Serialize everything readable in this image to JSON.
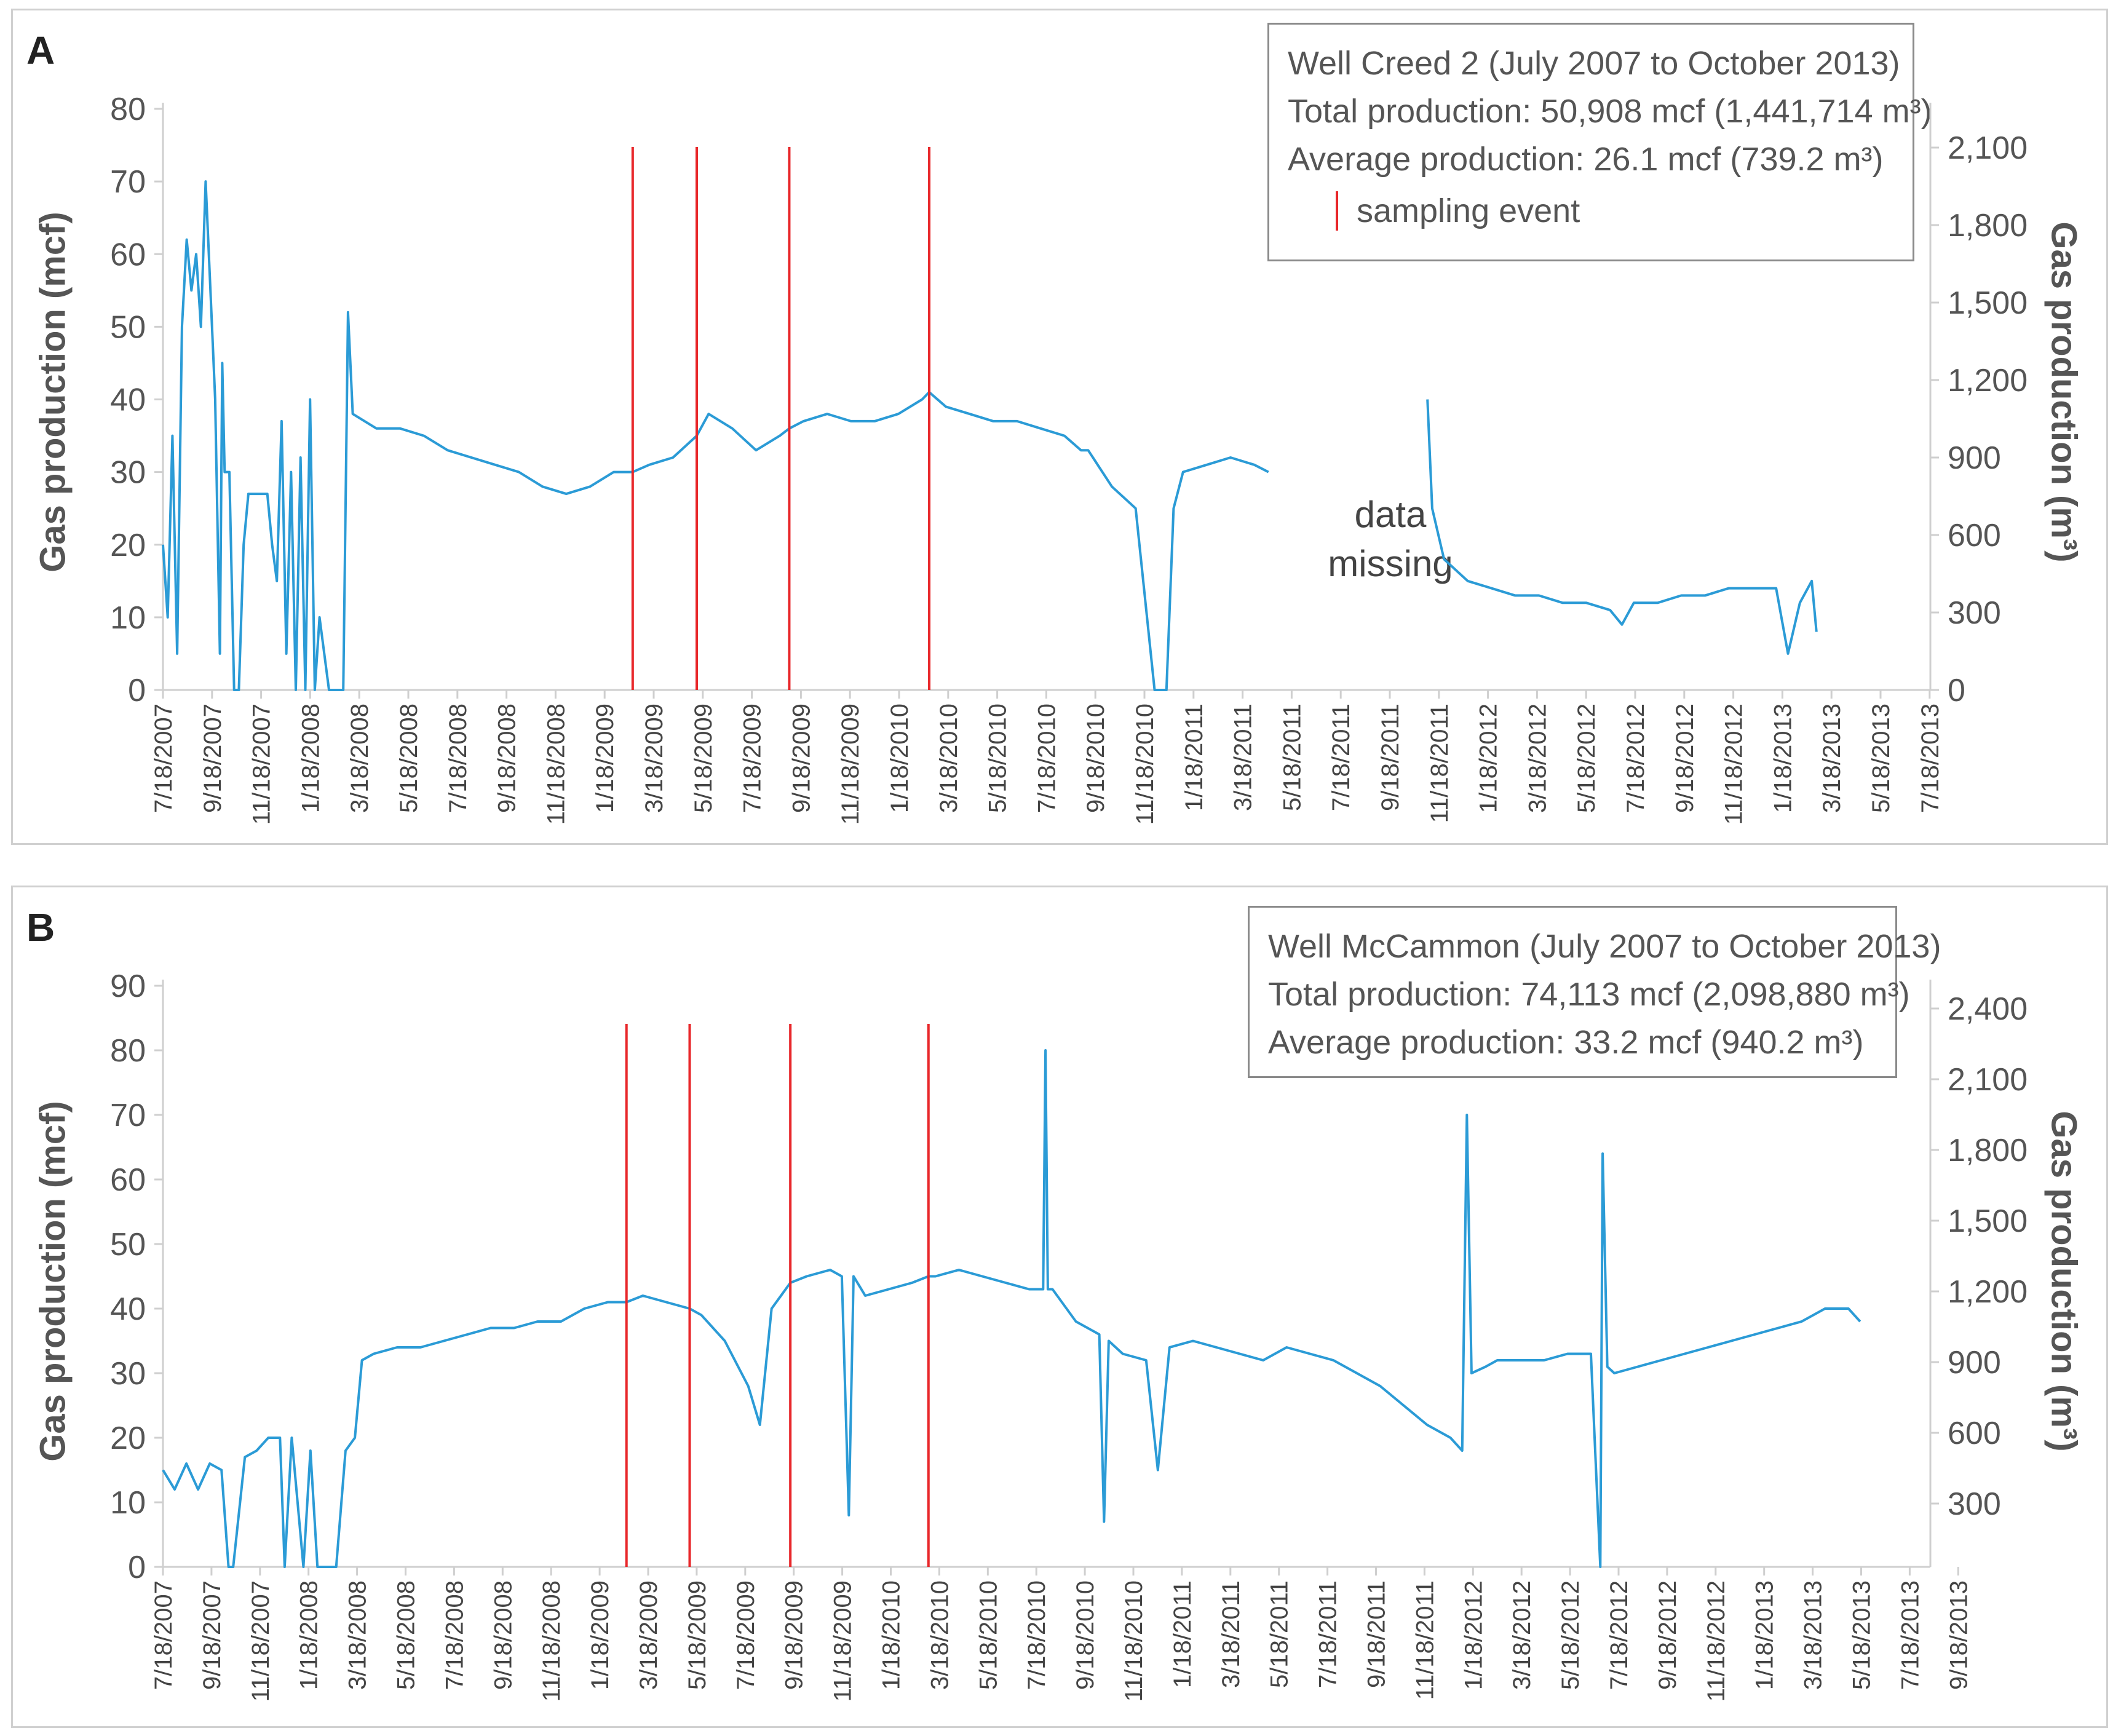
{
  "chart_data": [
    {
      "panel": "A",
      "type": "line",
      "legend_lines": [
        "Well Creed 2 (July 2007 to October 2013)",
        "Total production: 50,908 mcf (1,441,714 m³)",
        "Average production: 26.1 mcf (739.2 m³)"
      ],
      "legend_sample_label": "sampling event",
      "annotation": [
        "data",
        "missing"
      ],
      "ylabel": "Gas production (mcf)",
      "y2label": "Gas production (m³)",
      "ylim": [
        0,
        80
      ],
      "yticks": [
        0,
        10,
        20,
        30,
        40,
        50,
        60,
        70,
        80
      ],
      "y2ticks": [
        "0",
        "300",
        "600",
        "900",
        "1,200",
        "1,500",
        "1,800",
        "2,100"
      ],
      "xticks": [
        "7/18/2007",
        "9/18/2007",
        "11/18/2007",
        "1/18/2008",
        "3/18/2008",
        "5/18/2008",
        "7/18/2008",
        "9/18/2008",
        "11/18/2008",
        "1/18/2009",
        "3/18/2009",
        "5/18/2009",
        "7/18/2009",
        "9/18/2009",
        "11/18/2009",
        "1/18/2010",
        "3/18/2010",
        "5/18/2010",
        "7/18/2010",
        "9/18/2010",
        "11/18/2010",
        "1/18/2011",
        "3/18/2011",
        "5/18/2011",
        "7/18/2011",
        "9/18/2011",
        "11/18/2011",
        "1/18/2012",
        "3/18/2012",
        "5/18/2012",
        "7/18/2012",
        "9/18/2012",
        "11/18/2012",
        "1/18/2013",
        "3/18/2013",
        "5/18/2013",
        "7/18/2013"
      ],
      "sampling_events_month_index": [
        19.8,
        22.5,
        26.4,
        32.3
      ],
      "series": [
        {
          "name": "Gas production",
          "color": "#2b9bd6",
          "points": [
            [
              0,
              20
            ],
            [
              0.2,
              10
            ],
            [
              0.4,
              35
            ],
            [
              0.6,
              5
            ],
            [
              0.8,
              50
            ],
            [
              1,
              62
            ],
            [
              1.2,
              55
            ],
            [
              1.4,
              60
            ],
            [
              1.6,
              50
            ],
            [
              1.8,
              70
            ],
            [
              2,
              55
            ],
            [
              2.2,
              40
            ],
            [
              2.4,
              5
            ],
            [
              2.5,
              45
            ],
            [
              2.6,
              30
            ],
            [
              2.8,
              30
            ],
            [
              3,
              0
            ],
            [
              3.2,
              0
            ],
            [
              3.4,
              20
            ],
            [
              3.6,
              27
            ],
            [
              3.8,
              27
            ],
            [
              4,
              27
            ],
            [
              4.4,
              27
            ],
            [
              4.6,
              20
            ],
            [
              4.8,
              15
            ],
            [
              5,
              37
            ],
            [
              5.2,
              5
            ],
            [
              5.4,
              30
            ],
            [
              5.6,
              0
            ],
            [
              5.8,
              32
            ],
            [
              6,
              0
            ],
            [
              6.2,
              40
            ],
            [
              6.4,
              0
            ],
            [
              6.6,
              10
            ],
            [
              7,
              0
            ],
            [
              7.6,
              0
            ],
            [
              7.8,
              52
            ],
            [
              8,
              38
            ],
            [
              8.5,
              37
            ],
            [
              9,
              36
            ],
            [
              10,
              36
            ],
            [
              11,
              35
            ],
            [
              12,
              33
            ],
            [
              13,
              32
            ],
            [
              14,
              31
            ],
            [
              15,
              30
            ],
            [
              16,
              28
            ],
            [
              17,
              27
            ],
            [
              18,
              28
            ],
            [
              19,
              30
            ],
            [
              19.8,
              30
            ],
            [
              20.5,
              31
            ],
            [
              21.5,
              32
            ],
            [
              22.5,
              35
            ],
            [
              23,
              38
            ],
            [
              24,
              36
            ],
            [
              25,
              33
            ],
            [
              26,
              35
            ],
            [
              26.4,
              36
            ],
            [
              27,
              37
            ],
            [
              28,
              38
            ],
            [
              29,
              37
            ],
            [
              30,
              37
            ],
            [
              31,
              38
            ],
            [
              32,
              40
            ],
            [
              32.3,
              41
            ],
            [
              33,
              39
            ],
            [
              34,
              38
            ],
            [
              35,
              37
            ],
            [
              36,
              37
            ],
            [
              37,
              36
            ],
            [
              38,
              35
            ],
            [
              38.7,
              33
            ],
            [
              39,
              33
            ],
            [
              40,
              28
            ],
            [
              41,
              25
            ],
            [
              41.8,
              0
            ],
            [
              42.3,
              0
            ],
            [
              42.6,
              25
            ],
            [
              43,
              30
            ],
            [
              44,
              31
            ],
            [
              45,
              32
            ],
            [
              46,
              31
            ],
            [
              46.6,
              30
            ],
            [
              46.7,
              null
            ],
            [
              53.2,
              null
            ],
            [
              53.3,
              40
            ],
            [
              53.5,
              25
            ],
            [
              54,
              18
            ],
            [
              55,
              15
            ],
            [
              56,
              14
            ],
            [
              57,
              13
            ],
            [
              58,
              13
            ],
            [
              59,
              12
            ],
            [
              60,
              12
            ],
            [
              61,
              11
            ],
            [
              61.5,
              9
            ],
            [
              62,
              12
            ],
            [
              63,
              12
            ],
            [
              64,
              13
            ],
            [
              65,
              13
            ],
            [
              66,
              14
            ],
            [
              67,
              14
            ],
            [
              68,
              14
            ],
            [
              68.5,
              5
            ],
            [
              69,
              12
            ],
            [
              69.5,
              15
            ],
            [
              69.7,
              8
            ]
          ]
        }
      ]
    },
    {
      "panel": "B",
      "type": "line",
      "legend_lines": [
        "Well McCammon (July 2007 to October 2013)",
        "Total production: 74,113 mcf (2,098,880 m³)",
        "Average production: 33.2 mcf (940.2 m³)"
      ],
      "ylabel": "Gas production (mcf)",
      "y2label": "Gas production (m³)",
      "ylim": [
        0,
        90
      ],
      "yticks": [
        0,
        10,
        20,
        30,
        40,
        50,
        60,
        70,
        80,
        90
      ],
      "y2ticks": [
        "300",
        "600",
        "900",
        "1,200",
        "1,500",
        "1,800",
        "2,100",
        "2,400"
      ],
      "xticks": [
        "7/18/2007",
        "9/18/2007",
        "11/18/2007",
        "1/18/2008",
        "3/18/2008",
        "5/18/2008",
        "7/18/2008",
        "9/18/2008",
        "11/18/2008",
        "1/18/2009",
        "3/18/2009",
        "5/18/2009",
        "7/18/2009",
        "9/18/2009",
        "11/18/2009",
        "1/18/2010",
        "3/18/2010",
        "5/18/2010",
        "7/18/2010",
        "9/18/2010",
        "11/18/2010",
        "1/18/2011",
        "3/18/2011",
        "5/18/2011",
        "7/18/2011",
        "9/18/2011",
        "11/18/2011",
        "1/18/2012",
        "3/18/2012",
        "5/18/2012",
        "7/18/2012",
        "9/18/2012",
        "11/18/2012",
        "1/18/2013",
        "3/18/2013",
        "5/18/2013",
        "7/18/2013",
        "9/18/2013"
      ],
      "sampling_events_month_index": [
        19.8,
        22.5,
        26.8,
        32.7
      ],
      "series": [
        {
          "name": "Gas production",
          "color": "#2b9bd6",
          "points": [
            [
              0,
              15
            ],
            [
              0.5,
              12
            ],
            [
              1,
              16
            ],
            [
              1.5,
              12
            ],
            [
              2,
              16
            ],
            [
              2.5,
              15
            ],
            [
              2.8,
              0
            ],
            [
              3,
              0
            ],
            [
              3.5,
              17
            ],
            [
              4,
              18
            ],
            [
              4.5,
              20
            ],
            [
              5,
              20
            ],
            [
              5.2,
              0
            ],
            [
              5.5,
              20
            ],
            [
              6,
              0
            ],
            [
              6.3,
              18
            ],
            [
              6.6,
              0
            ],
            [
              7,
              0
            ],
            [
              7.4,
              0
            ],
            [
              7.8,
              18
            ],
            [
              8.2,
              20
            ],
            [
              8.5,
              32
            ],
            [
              9,
              33
            ],
            [
              10,
              34
            ],
            [
              11,
              34
            ],
            [
              12,
              35
            ],
            [
              13,
              36
            ],
            [
              14,
              37
            ],
            [
              15,
              37
            ],
            [
              16,
              38
            ],
            [
              17,
              38
            ],
            [
              18,
              40
            ],
            [
              19,
              41
            ],
            [
              19.8,
              41
            ],
            [
              20.5,
              42
            ],
            [
              21.5,
              41
            ],
            [
              22.5,
              40
            ],
            [
              23,
              39
            ],
            [
              24,
              35
            ],
            [
              25,
              28
            ],
            [
              25.5,
              22
            ],
            [
              26,
              40
            ],
            [
              26.8,
              44
            ],
            [
              27.5,
              45
            ],
            [
              28.5,
              46
            ],
            [
              29,
              45
            ],
            [
              29.3,
              8
            ],
            [
              29.5,
              45
            ],
            [
              30,
              42
            ],
            [
              31,
              43
            ],
            [
              32,
              44
            ],
            [
              32.7,
              45
            ],
            [
              33,
              45
            ],
            [
              34,
              46
            ],
            [
              35,
              45
            ],
            [
              36,
              44
            ],
            [
              37,
              43
            ],
            [
              37.6,
              43
            ],
            [
              37.7,
              80
            ],
            [
              37.8,
              43
            ],
            [
              38,
              43
            ],
            [
              39,
              38
            ],
            [
              40,
              36
            ],
            [
              40.2,
              7
            ],
            [
              40.4,
              35
            ],
            [
              41,
              33
            ],
            [
              42,
              32
            ],
            [
              42.5,
              15
            ],
            [
              43,
              34
            ],
            [
              44,
              35
            ],
            [
              45,
              34
            ],
            [
              46,
              33
            ],
            [
              47,
              32
            ],
            [
              48,
              34
            ],
            [
              49,
              33
            ],
            [
              50,
              32
            ],
            [
              51,
              30
            ],
            [
              52,
              28
            ],
            [
              53,
              25
            ],
            [
              54,
              22
            ],
            [
              55,
              20
            ],
            [
              55.5,
              18
            ],
            [
              55.7,
              70
            ],
            [
              55.9,
              30
            ],
            [
              56.5,
              31
            ],
            [
              57,
              32
            ],
            [
              58,
              32
            ],
            [
              59,
              32
            ],
            [
              60,
              33
            ],
            [
              61,
              33
            ],
            [
              61.4,
              0
            ],
            [
              61.5,
              64
            ],
            [
              61.7,
              31
            ],
            [
              62,
              30
            ],
            [
              63,
              31
            ],
            [
              64,
              32
            ],
            [
              65,
              33
            ],
            [
              66,
              34
            ],
            [
              67,
              35
            ],
            [
              68,
              36
            ],
            [
              69,
              37
            ],
            [
              70,
              38
            ],
            [
              71,
              40
            ],
            [
              72,
              40
            ],
            [
              72.5,
              38
            ]
          ]
        }
      ]
    }
  ]
}
